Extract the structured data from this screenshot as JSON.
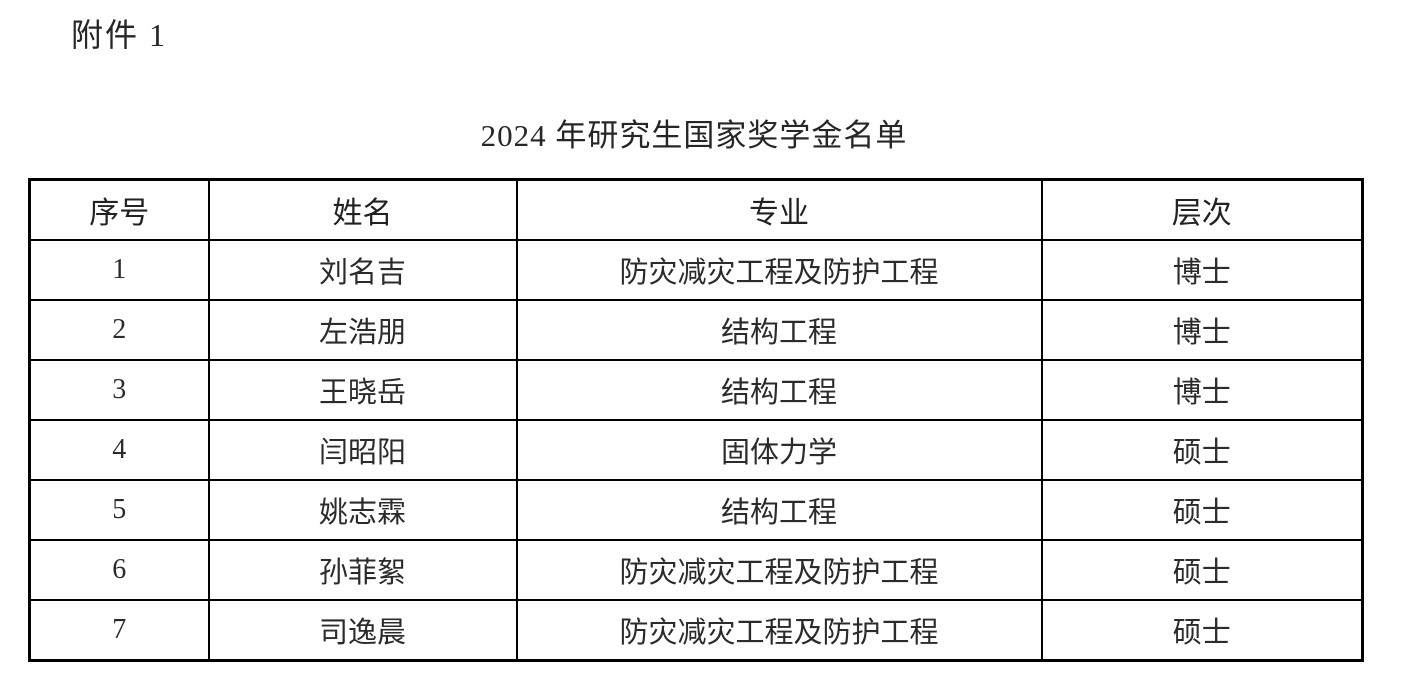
{
  "page": {
    "attachment_label": "附件 1",
    "title": "2024 年研究生国家奖学金名单"
  },
  "table": {
    "columns": [
      "序号",
      "姓名",
      "专业",
      "层次"
    ],
    "rows": [
      {
        "no": "1",
        "name": "刘名吉",
        "major": "防灾减灾工程及防护工程",
        "level": "博士"
      },
      {
        "no": "2",
        "name": "左浩朋",
        "major": "结构工程",
        "level": "博士"
      },
      {
        "no": "3",
        "name": "王晓岳",
        "major": "结构工程",
        "level": "博士"
      },
      {
        "no": "4",
        "name": "闫昭阳",
        "major": "固体力学",
        "level": "硕士"
      },
      {
        "no": "5",
        "name": "姚志霖",
        "major": "结构工程",
        "level": "硕士"
      },
      {
        "no": "6",
        "name": "孙菲絮",
        "major": "防灾减灾工程及防护工程",
        "level": "硕士"
      },
      {
        "no": "7",
        "name": "司逸晨",
        "major": "防灾减灾工程及防护工程",
        "level": "硕士"
      }
    ]
  },
  "colors": {
    "text": "#262626",
    "border": "#000000",
    "background": "#ffffff"
  }
}
